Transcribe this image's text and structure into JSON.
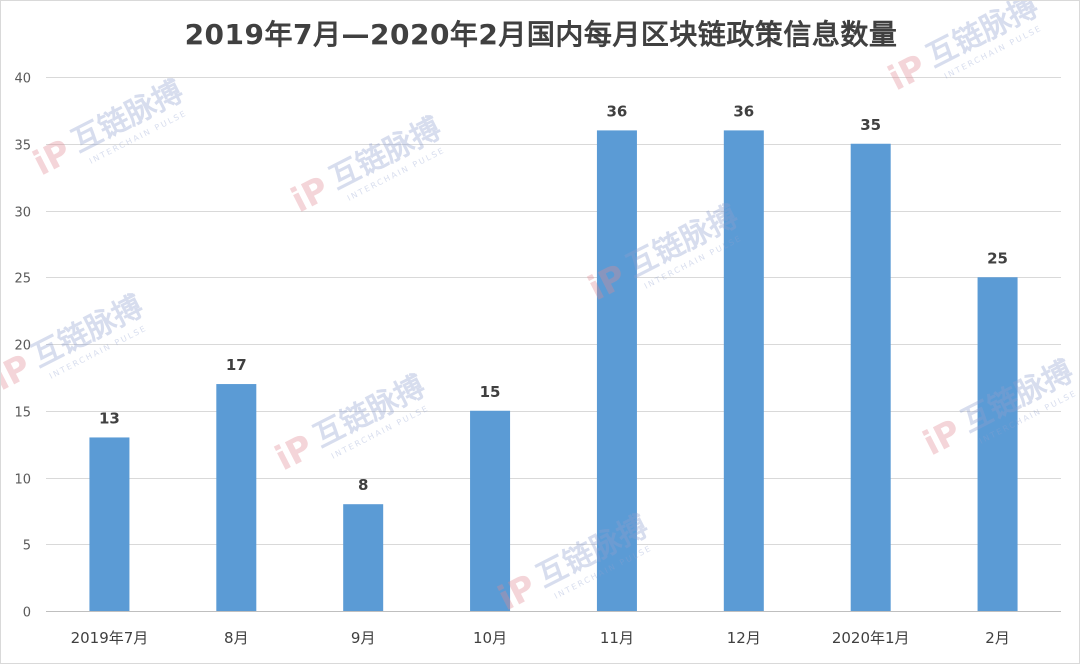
{
  "chart_data": {
    "type": "bar",
    "title": "2019年7月—2020年2月国内每月区块链政策信息数量",
    "xlabel": "",
    "ylabel": "",
    "categories": [
      "2019年7月",
      "8月",
      "9月",
      "10月",
      "11月",
      "12月",
      "2020年1月",
      "2月"
    ],
    "values": [
      13,
      17,
      8,
      15,
      36,
      36,
      35,
      25
    ],
    "ylim": [
      0,
      40
    ],
    "yticks": [
      0,
      5,
      10,
      15,
      20,
      25,
      30,
      35,
      40
    ],
    "grid": true,
    "data_labels": true,
    "bar_color": "#5b9bd5"
  },
  "watermark": {
    "brand": "互链脉搏",
    "sub": "INTERCHAIN PULSE",
    "logo": "iP"
  }
}
